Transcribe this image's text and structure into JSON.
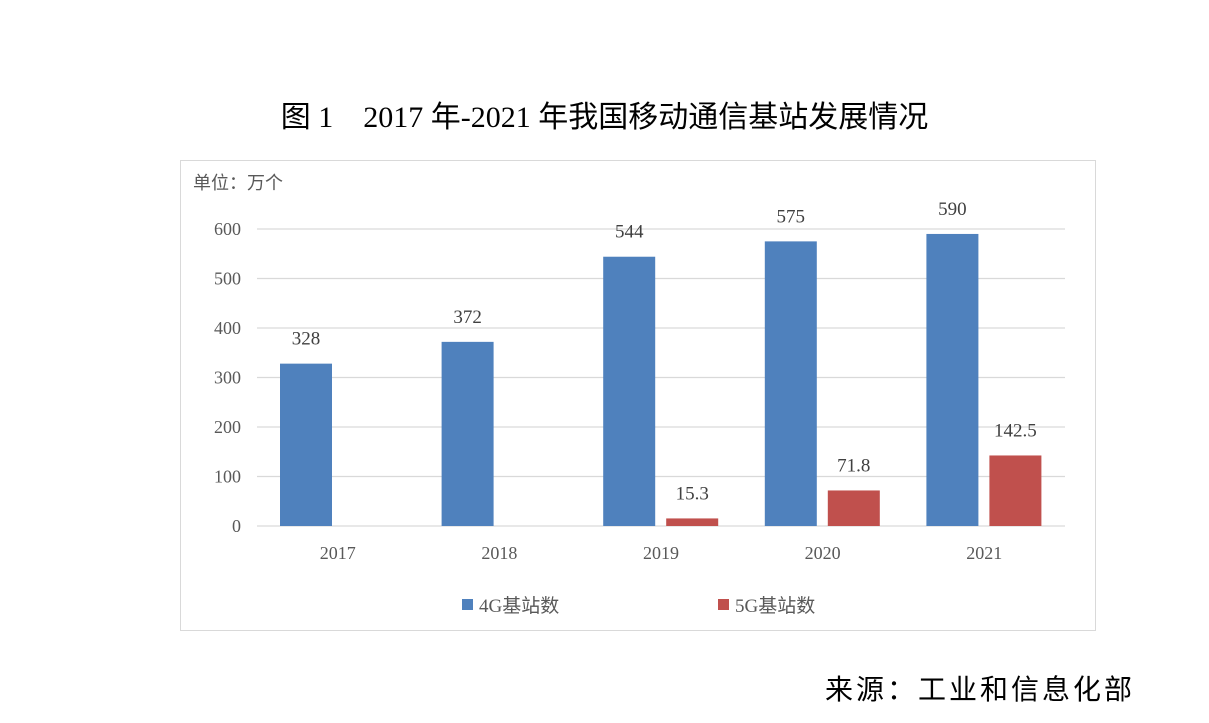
{
  "chart_data": {
    "type": "bar",
    "title": "图 1    2017 年-2021 年我国移动通信基站发展情况",
    "unit_label": "单位：万个",
    "categories": [
      "2017",
      "2018",
      "2019",
      "2020",
      "2021"
    ],
    "series": [
      {
        "name": "4G基站数",
        "color": "#4f81bd",
        "values": [
          328,
          372,
          544,
          575,
          590
        ]
      },
      {
        "name": "5G基站数",
        "color": "#c0504d",
        "values": [
          null,
          null,
          15.3,
          71.8,
          142.5
        ]
      }
    ],
    "data_labels": [
      [
        "328",
        "372",
        "544",
        "575",
        "590"
      ],
      [
        "",
        "",
        "15.3",
        "71.8",
        "142.5"
      ]
    ],
    "ylim": [
      0,
      600
    ],
    "yticks": [
      0,
      100,
      200,
      300,
      400,
      500,
      600
    ],
    "grid": true,
    "legend_position": "bottom"
  },
  "source": "来源：工业和信息化部"
}
